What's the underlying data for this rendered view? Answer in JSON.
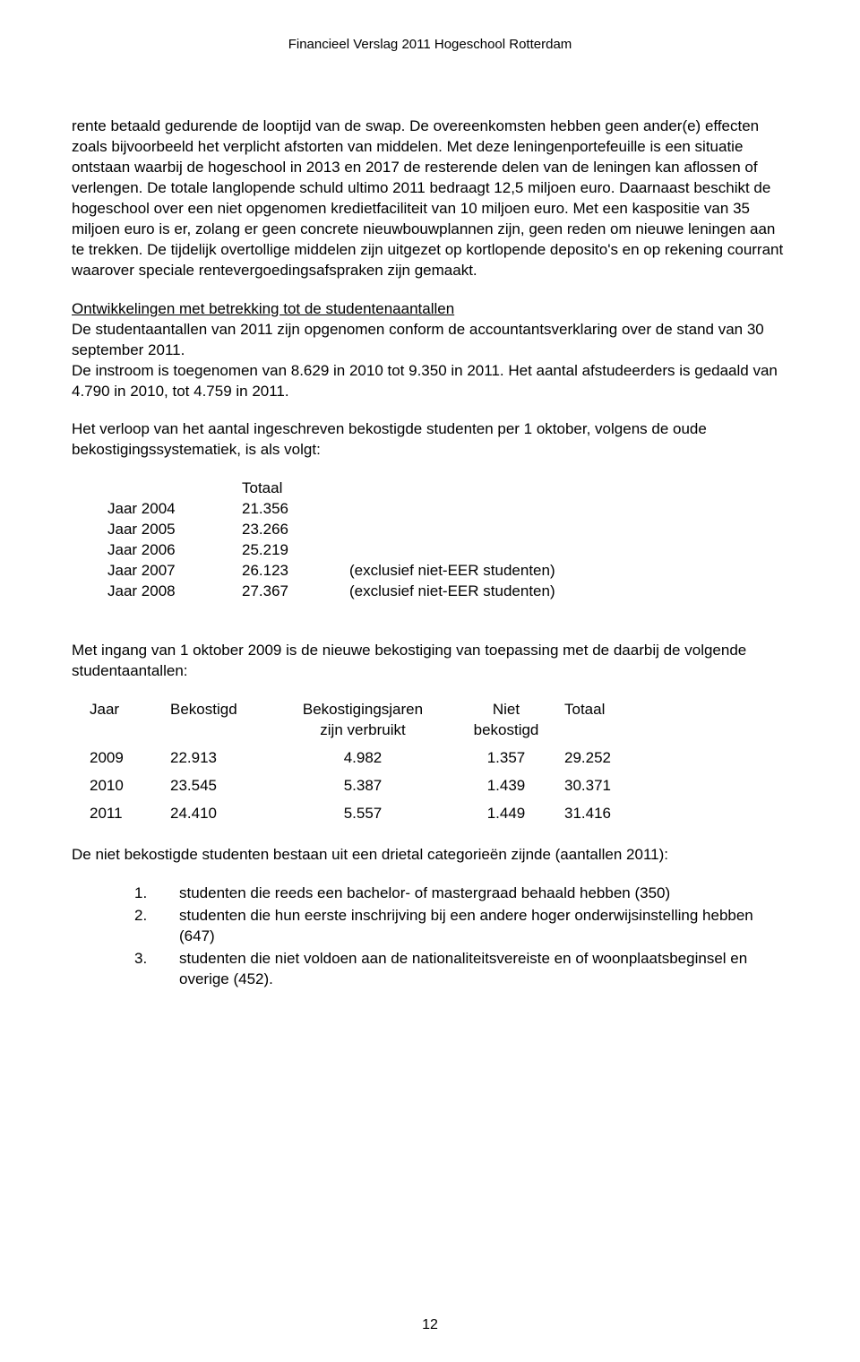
{
  "header": "Financieel Verslag 2011   Hogeschool Rotterdam",
  "para1": "rente betaald gedurende de looptijd van de swap. De overeenkomsten hebben geen ander(e) effecten zoals bijvoorbeeld het verplicht afstorten van middelen.",
  "para2": "Met deze leningenportefeuille is een situatie ontstaan waarbij de hogeschool in 2013 en 2017 de resterende delen van de leningen kan aflossen of verlengen. De totale langlopende schuld ultimo 2011 bedraagt 12,5 miljoen euro.",
  "para3": "Daarnaast beschikt de hogeschool over een niet opgenomen kredietfaciliteit van 10 miljoen euro. Met een kaspositie van 35 miljoen euro is er, zolang er geen concrete nieuwbouwplannen zijn, geen reden om nieuwe leningen aan te trekken.",
  "para4": "De tijdelijk overtollige middelen zijn uitgezet op kortlopende deposito's en op rekening courrant waarover speciale rentevergoedingsafspraken zijn gemaakt.",
  "section2_title": "Ontwikkelingen met betrekking tot de studentenaantallen",
  "section2_p1": "De studentaantallen van 2011 zijn opgenomen conform de accountantsverklaring over de stand van 30 september 2011.",
  "section2_p2": "De instroom is toegenomen van 8.629 in 2010 tot 9.350 in 2011. Het aantal afstudeerders is gedaald van 4.790 in 2010, tot 4.759 in 2011.",
  "section2_p3": "Het verloop van het aantal ingeschreven bekostigde studenten per 1 oktober, volgens de oude bekostigingssystematiek, is als volgt:",
  "student_table": {
    "header_total": "Totaal",
    "rows": [
      {
        "year": "Jaar 2004",
        "total": "21.356",
        "note": ""
      },
      {
        "year": "Jaar 2005",
        "total": "23.266",
        "note": ""
      },
      {
        "year": "Jaar 2006",
        "total": "25.219",
        "note": ""
      },
      {
        "year": "Jaar 2007",
        "total": "26.123",
        "note": "(exclusief niet-EER studenten)"
      },
      {
        "year": "Jaar 2008",
        "total": "27.367",
        "note": "(exclusief niet-EER studenten)"
      }
    ]
  },
  "section3_p1": "Met ingang van 1 oktober 2009 is de nieuwe bekostiging van toepassing met de daarbij de volgende studentaantallen:",
  "funding_table": {
    "headers": {
      "c1": "Jaar",
      "c2": "Bekostigd",
      "c3a": "Bekostigingsjaren",
      "c3b": "zijn verbruikt",
      "c4a": "Niet",
      "c4b": "bekostigd",
      "c5": "Totaal"
    },
    "rows": [
      {
        "c1": "2009",
        "c2": "22.913",
        "c3": "4.982",
        "c4": "1.357",
        "c5": "29.252"
      },
      {
        "c1": "2010",
        "c2": "23.545",
        "c3": "5.387",
        "c4": "1.439",
        "c5": "30.371"
      },
      {
        "c1": "2011",
        "c2": "24.410",
        "c3": "5.557",
        "c4": "1.449",
        "c5": "31.416"
      }
    ]
  },
  "section4_p1": "De niet bekostigde studenten bestaan uit een drietal categorieën zijnde (aantallen 2011):",
  "ordered_list": [
    {
      "num": "1.",
      "text": "studenten die reeds een bachelor- of mastergraad behaald hebben (350)"
    },
    {
      "num": "2.",
      "text": "studenten die hun eerste inschrijving bij een andere hoger onderwijsinstelling hebben (647)"
    },
    {
      "num": "3.",
      "text": "studenten die niet voldoen aan de nationaliteitsvereiste en of woonplaatsbeginsel en overige (452)."
    }
  ],
  "page_number": "12"
}
